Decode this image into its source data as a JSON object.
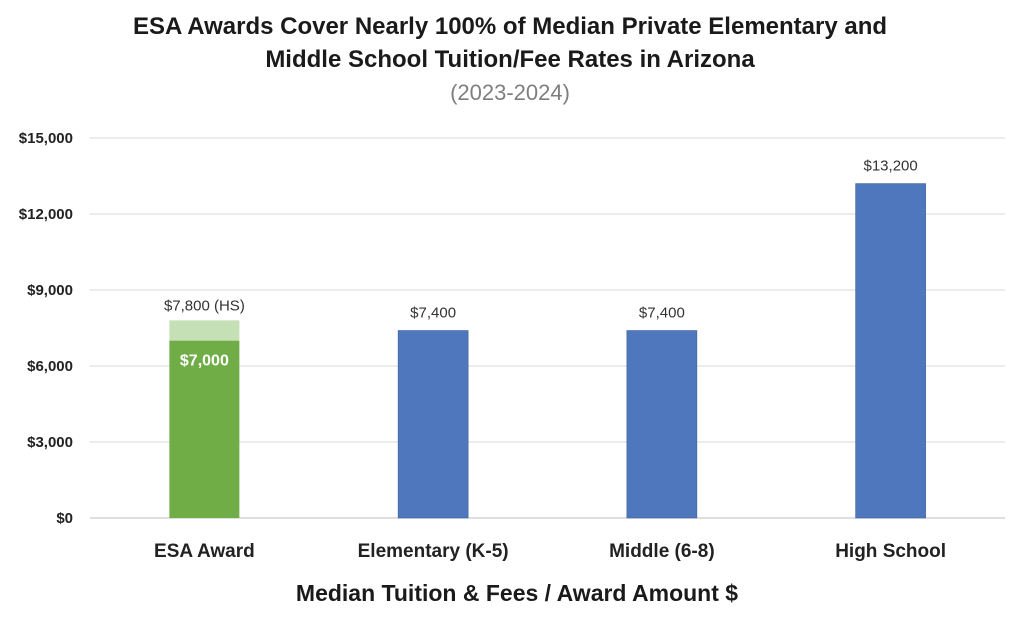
{
  "chart_data": {
    "type": "bar",
    "title_lines": [
      "ESA Awards Cover Nearly 100% of Median Private Elementary and",
      "Middle School Tuition/Fee Rates in Arizona"
    ],
    "subtitle": "(2023-2024)",
    "xlabel": "Median Tuition & Fees / Award Amount $",
    "ylabel": "",
    "ylim": [
      0,
      15000
    ],
    "y_ticks": [
      {
        "value": 0,
        "label": "$0"
      },
      {
        "value": 3000,
        "label": "$3,000"
      },
      {
        "value": 6000,
        "label": "$6,000"
      },
      {
        "value": 9000,
        "label": "$9,000"
      },
      {
        "value": 12000,
        "label": "$12,000"
      },
      {
        "value": 15000,
        "label": "$15,000"
      }
    ],
    "grid": true,
    "categories": [
      "ESA Award",
      "Elementary (K-5)",
      "Middle (6-8)",
      "High School"
    ],
    "values": [
      7000,
      7400,
      7400,
      13200
    ],
    "value_labels": [
      "$7,000",
      "$7,400",
      "$7,400",
      "$13,200"
    ],
    "colors": [
      "#70ad47",
      "#4f77bd",
      "#4f77bd",
      "#4f77bd"
    ],
    "stacked_extra": {
      "category": "ESA Award",
      "total": 7800,
      "label": "$7,800 (HS)",
      "color": "#c5e0b4"
    }
  }
}
